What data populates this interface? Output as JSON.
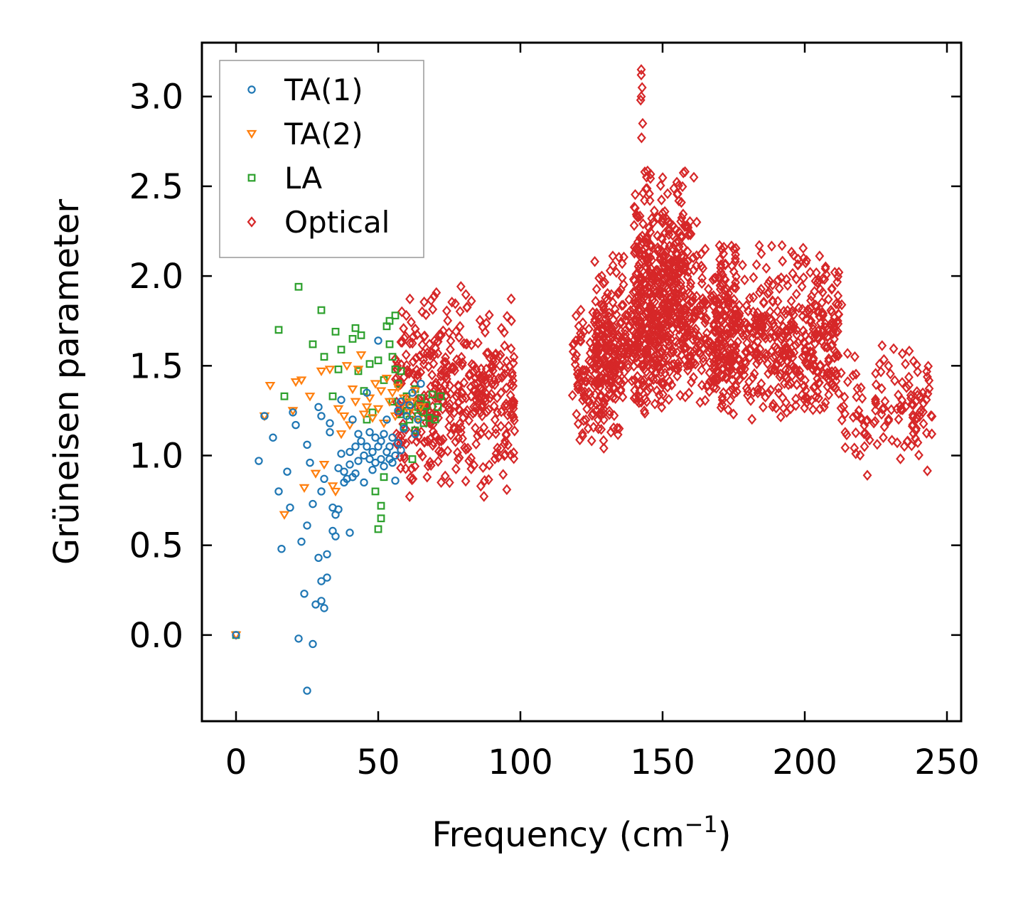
{
  "chart_data": {
    "type": "scatter",
    "title": "",
    "xlabel": "Frequency (cm",
    "xlabel_sup": "−1",
    "xlabel_close": ")",
    "ylabel": "Grüneisen parameter",
    "xlim": [
      -12,
      255
    ],
    "ylim": [
      -0.48,
      3.3
    ],
    "xticks": [
      0,
      50,
      100,
      150,
      200,
      250
    ],
    "xtick_labels": [
      "0",
      "50",
      "100",
      "150",
      "200",
      "250"
    ],
    "yticks": [
      0.0,
      0.5,
      1.0,
      1.5,
      2.0,
      2.5,
      3.0
    ],
    "ytick_labels": [
      "0.0",
      "0.5",
      "1.0",
      "1.5",
      "2.0",
      "2.5",
      "3.0"
    ],
    "legend_position": "upper-left",
    "grid": false,
    "series": [
      {
        "name": "TA(1)",
        "marker": "circle",
        "color": "#1f77b4",
        "points": [
          [
            0,
            0
          ],
          [
            8,
            0.97
          ],
          [
            10,
            1.22
          ],
          [
            13,
            1.1
          ],
          [
            15,
            0.8
          ],
          [
            16,
            0.48
          ],
          [
            18,
            0.91
          ],
          [
            19,
            0.71
          ],
          [
            20,
            1.24
          ],
          [
            21,
            1.17
          ],
          [
            22,
            -0.02
          ],
          [
            23,
            0.52
          ],
          [
            24,
            0.23
          ],
          [
            25,
            0.61
          ],
          [
            25,
            1.06
          ],
          [
            25,
            -0.31
          ],
          [
            26,
            0.96
          ],
          [
            27,
            0.73
          ],
          [
            27,
            -0.05
          ],
          [
            28,
            0.17
          ],
          [
            29,
            0.43
          ],
          [
            29,
            1.27
          ],
          [
            30,
            0.8
          ],
          [
            30,
            0.3
          ],
          [
            30,
            0.19
          ],
          [
            30,
            1.22
          ],
          [
            31,
            0.15
          ],
          [
            31,
            0.87
          ],
          [
            32,
            0.45
          ],
          [
            32,
            0.32
          ],
          [
            33,
            1.18
          ],
          [
            33,
            1.13
          ],
          [
            34,
            0.58
          ],
          [
            34,
            0.71
          ],
          [
            35,
            0.55
          ],
          [
            35,
            0.67
          ],
          [
            36,
            0.93
          ],
          [
            36,
            0.7
          ],
          [
            37,
            1.31
          ],
          [
            37,
            1.01
          ],
          [
            38,
            0.85
          ],
          [
            38,
            0.91
          ],
          [
            39,
            0.87
          ],
          [
            40,
            1.02
          ],
          [
            40,
            0.57
          ],
          [
            40,
            0.95
          ],
          [
            41,
            1.2
          ],
          [
            41,
            0.88
          ],
          [
            42,
            1.05
          ],
          [
            42,
            0.9
          ],
          [
            43,
            1.12
          ],
          [
            43,
            0.97
          ],
          [
            44,
            1.08
          ],
          [
            45,
            0.85
          ],
          [
            45,
            1.0
          ],
          [
            46,
            1.05
          ],
          [
            46,
            1.35
          ],
          [
            47,
            0.98
          ],
          [
            47,
            1.13
          ],
          [
            48,
            0.92
          ],
          [
            48,
            1.02
          ],
          [
            49,
            1.1
          ],
          [
            49,
            0.96
          ],
          [
            50,
            1.05
          ],
          [
            50,
            1.64
          ],
          [
            51,
            0.98
          ],
          [
            51,
            1.08
          ],
          [
            52,
            1.12
          ],
          [
            52,
            0.94
          ],
          [
            53,
            1.02
          ],
          [
            53,
            1.2
          ],
          [
            54,
            0.98
          ],
          [
            54,
            1.05
          ],
          [
            55,
            1.1
          ],
          [
            55,
            0.96
          ],
          [
            56,
            1.0
          ],
          [
            56,
            0.86
          ],
          [
            57,
            1.25
          ],
          [
            57,
            1.07
          ],
          [
            58,
            1.03
          ],
          [
            58,
            1.3
          ],
          [
            59,
            1.15
          ],
          [
            60,
            1.22
          ],
          [
            61,
            1.28
          ],
          [
            62,
            1.35
          ],
          [
            63,
            1.12
          ],
          [
            64,
            1.2
          ],
          [
            65,
            1.4
          ]
        ]
      },
      {
        "name": "TA(2)",
        "marker": "triangle-down",
        "color": "#ff7f0e",
        "points": [
          [
            0,
            0
          ],
          [
            10,
            1.22
          ],
          [
            12,
            1.39
          ],
          [
            17,
            0.67
          ],
          [
            20,
            1.25
          ],
          [
            21,
            1.41
          ],
          [
            23,
            1.42
          ],
          [
            24,
            0.82
          ],
          [
            26,
            1.33
          ],
          [
            28,
            0.9
          ],
          [
            30,
            1.47
          ],
          [
            31,
            0.95
          ],
          [
            33,
            1.48
          ],
          [
            34,
            0.83
          ],
          [
            35,
            0.8
          ],
          [
            36,
            1.26
          ],
          [
            37,
            1.12
          ],
          [
            38,
            1.22
          ],
          [
            39,
            1.5
          ],
          [
            40,
            1.17
          ],
          [
            41,
            1.37
          ],
          [
            42,
            1.3
          ],
          [
            43,
            1.48
          ],
          [
            44,
            1.56
          ],
          [
            45,
            1.23
          ],
          [
            46,
            1.27
          ],
          [
            47,
            1.32
          ],
          [
            48,
            1.21
          ],
          [
            49,
            1.4
          ],
          [
            50,
            1.26
          ],
          [
            51,
            1.36
          ],
          [
            52,
            1.18
          ],
          [
            53,
            1.43
          ],
          [
            54,
            1.3
          ],
          [
            55,
            1.35
          ],
          [
            56,
            1.22
          ],
          [
            57,
            1.38
          ],
          [
            58,
            1.27
          ],
          [
            59,
            1.32
          ],
          [
            60,
            1.29
          ],
          [
            61,
            1.24
          ],
          [
            62,
            1.3
          ],
          [
            63,
            1.36
          ],
          [
            64,
            1.2
          ],
          [
            65,
            1.27
          ]
        ]
      },
      {
        "name": "LA",
        "marker": "square",
        "color": "#2ca02c",
        "points": [
          [
            0,
            0
          ],
          [
            15,
            1.7
          ],
          [
            17,
            1.33
          ],
          [
            22,
            1.94
          ],
          [
            27,
            1.62
          ],
          [
            30,
            1.81
          ],
          [
            31,
            1.55
          ],
          [
            34,
            1.33
          ],
          [
            35,
            1.69
          ],
          [
            36,
            1.48
          ],
          [
            37,
            1.59
          ],
          [
            41,
            1.65
          ],
          [
            42,
            1.71
          ],
          [
            43,
            1.47
          ],
          [
            44,
            1.67
          ],
          [
            45,
            1.36
          ],
          [
            46,
            1.2
          ],
          [
            47,
            1.51
          ],
          [
            48,
            1.24
          ],
          [
            49,
            0.8
          ],
          [
            50,
            0.59
          ],
          [
            50,
            1.53
          ],
          [
            51,
            0.72
          ],
          [
            51,
            0.65
          ],
          [
            52,
            1.42
          ],
          [
            52,
            0.88
          ],
          [
            53,
            1.72
          ],
          [
            54,
            1.62
          ],
          [
            54,
            1.75
          ],
          [
            55,
            1.55
          ],
          [
            55,
            1.3
          ],
          [
            56,
            1.78
          ],
          [
            56,
            1.48
          ],
          [
            57,
            1.4
          ],
          [
            58,
            1.23
          ],
          [
            58,
            1.47
          ],
          [
            59,
            1.16
          ],
          [
            60,
            1.33
          ],
          [
            60,
            1.25
          ],
          [
            61,
            1.2
          ],
          [
            62,
            0.98
          ],
          [
            62,
            1.3
          ],
          [
            63,
            1.14
          ],
          [
            63,
            1.37
          ],
          [
            64,
            1.27
          ],
          [
            64,
            1.22
          ],
          [
            65,
            1.32
          ],
          [
            66,
            1.18
          ],
          [
            66,
            1.24
          ],
          [
            67,
            1.28
          ],
          [
            68,
            1.21
          ],
          [
            69,
            1.34
          ],
          [
            70,
            1.2
          ],
          [
            71,
            1.27
          ],
          [
            72,
            1.33
          ]
        ]
      },
      {
        "name": "Optical",
        "marker": "diamond",
        "color": "#d62728",
        "clusters": [
          {
            "x": [
              56,
              98
            ],
            "y": [
              0.72,
              1.96
            ],
            "n": 420
          },
          {
            "x": [
              118,
              135
            ],
            "y": [
              1.0,
              1.85
            ],
            "n": 140
          },
          {
            "x": [
              126,
              150
            ],
            "y": [
              1.15,
              2.15
            ],
            "n": 320
          },
          {
            "x": [
              140,
              160
            ],
            "y": [
              1.3,
              2.65
            ],
            "n": 340
          },
          {
            "x": [
              150,
              176
            ],
            "y": [
              1.25,
              2.2
            ],
            "n": 300
          },
          {
            "x": [
              168,
              212
            ],
            "y": [
              1.15,
              2.18
            ],
            "n": 500
          },
          {
            "x": [
              212,
              245
            ],
            "y": [
              0.9,
              1.65
            ],
            "n": 120
          }
        ],
        "highlights": [
          [
            142.5,
            3.15
          ],
          [
            142.5,
            3.12
          ],
          [
            142.8,
            3.05
          ],
          [
            142.5,
            3.0
          ],
          [
            142.3,
            2.98
          ],
          [
            143,
            2.85
          ],
          [
            142.6,
            2.77
          ],
          [
            150,
            2.35
          ],
          [
            152,
            2.3
          ],
          [
            162,
            2.3
          ],
          [
            161,
            2.55
          ],
          [
            165,
            2.15
          ],
          [
            170,
            2.17
          ],
          [
            175,
            2.15
          ],
          [
            184,
            2.17
          ],
          [
            192,
            2.17
          ],
          [
            213,
            1.84
          ],
          [
            219,
            1.25
          ],
          [
            220,
            1.2
          ],
          [
            221,
            1.05
          ],
          [
            222,
            1.11
          ],
          [
            222,
            0.89
          ],
          [
            225,
            1.29
          ],
          [
            227,
            1.23
          ],
          [
            228,
            1.16
          ]
        ]
      }
    ]
  }
}
